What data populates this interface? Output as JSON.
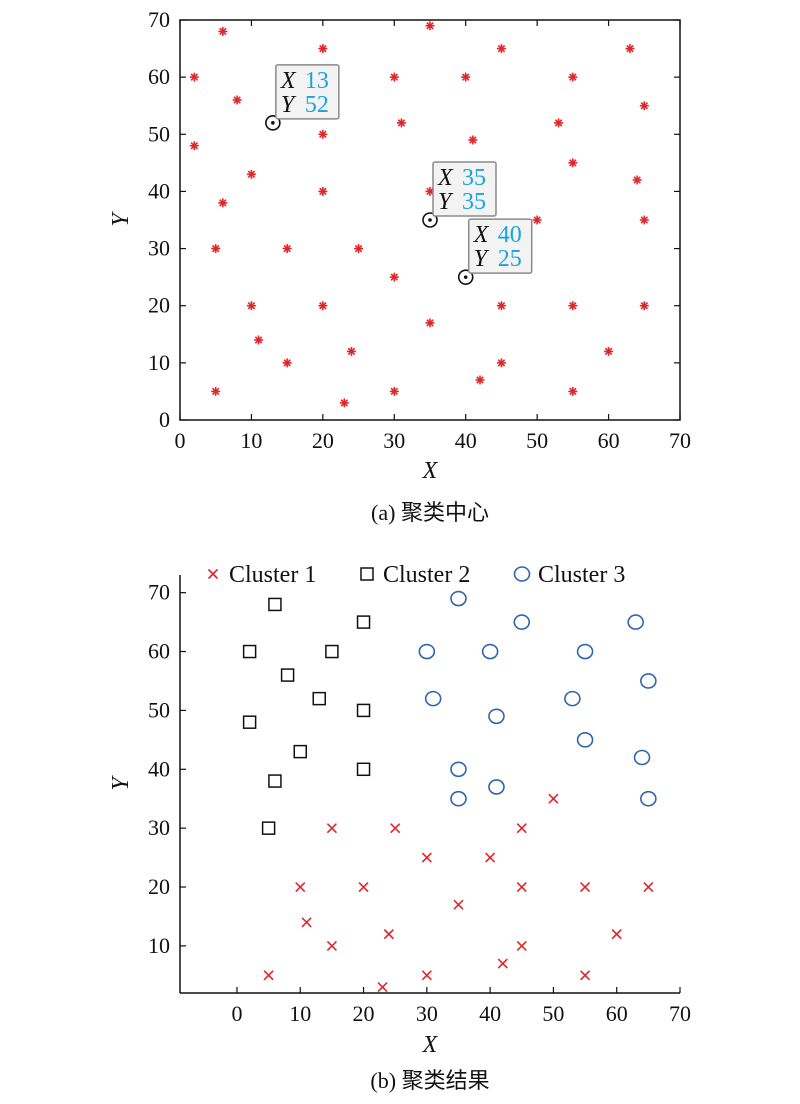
{
  "chart_data": [
    {
      "type": "scatter",
      "caption": "(a) 聚类中心",
      "xlabel": "X",
      "ylabel": "Y",
      "xlim": [
        0,
        70
      ],
      "ylim": [
        0,
        70
      ],
      "xticks": [
        0,
        10,
        20,
        30,
        40,
        50,
        60,
        70
      ],
      "yticks": [
        0,
        10,
        20,
        30,
        40,
        50,
        60,
        70
      ],
      "marker_color": "#e0262b",
      "points": [
        [
          2,
          60
        ],
        [
          6,
          68
        ],
        [
          8,
          56
        ],
        [
          2,
          48
        ],
        [
          10,
          43
        ],
        [
          6,
          38
        ],
        [
          5,
          30
        ],
        [
          15,
          30
        ],
        [
          10,
          20
        ],
        [
          11,
          14
        ],
        [
          15,
          10
        ],
        [
          5,
          5
        ],
        [
          20,
          65
        ],
        [
          20,
          50
        ],
        [
          20,
          40
        ],
        [
          25,
          30
        ],
        [
          20,
          20
        ],
        [
          24,
          12
        ],
        [
          23,
          3
        ],
        [
          30,
          60
        ],
        [
          31,
          52
        ],
        [
          30,
          25
        ],
        [
          30,
          5
        ],
        [
          35,
          69
        ],
        [
          35,
          40
        ],
        [
          35,
          17
        ],
        [
          40,
          60
        ],
        [
          41,
          49
        ],
        [
          42,
          7
        ],
        [
          45,
          65
        ],
        [
          45,
          20
        ],
        [
          45,
          10
        ],
        [
          50,
          35
        ],
        [
          53,
          52
        ],
        [
          55,
          60
        ],
        [
          55,
          45
        ],
        [
          55,
          20
        ],
        [
          55,
          5
        ],
        [
          60,
          12
        ],
        [
          63,
          65
        ],
        [
          65,
          55
        ],
        [
          64,
          42
        ],
        [
          65,
          35
        ],
        [
          65,
          20
        ]
      ],
      "centers": [
        {
          "x": 13,
          "y": 52,
          "x_key": "X",
          "x_text": "13",
          "y_key": "Y",
          "y_text": "52"
        },
        {
          "x": 35,
          "y": 35,
          "x_key": "X",
          "x_text": "35",
          "y_key": "Y",
          "y_text": "35"
        },
        {
          "x": 40,
          "y": 25,
          "x_key": "X",
          "x_text": "40",
          "y_key": "Y",
          "y_text": "25"
        }
      ]
    },
    {
      "type": "scatter",
      "caption": "(b) 聚类结果",
      "xlabel": "X",
      "ylabel": "Y",
      "xlim": [
        -9,
        70
      ],
      "ylim": [
        2,
        73
      ],
      "xticks": [
        0,
        10,
        20,
        30,
        40,
        50,
        60,
        70
      ],
      "yticks": [
        10,
        20,
        30,
        40,
        50,
        60,
        70
      ],
      "legend_position": "top",
      "series": [
        {
          "name": "Cluster 1",
          "marker": "x",
          "color": "#e0262b",
          "points": [
            [
              15,
              30
            ],
            [
              25,
              30
            ],
            [
              30,
              25
            ],
            [
              40,
              25
            ],
            [
              45,
              30
            ],
            [
              50,
              35
            ],
            [
              10,
              20
            ],
            [
              20,
              20
            ],
            [
              45,
              20
            ],
            [
              55,
              20
            ],
            [
              65,
              20
            ],
            [
              35,
              17
            ],
            [
              11,
              14
            ],
            [
              24,
              12
            ],
            [
              15,
              10
            ],
            [
              45,
              10
            ],
            [
              60,
              12
            ],
            [
              5,
              5
            ],
            [
              30,
              5
            ],
            [
              42,
              7
            ],
            [
              55,
              5
            ],
            [
              23,
              3
            ]
          ]
        },
        {
          "name": "Cluster 2",
          "marker": "square",
          "color": "#111111",
          "points": [
            [
              6,
              68
            ],
            [
              20,
              65
            ],
            [
              2,
              60
            ],
            [
              15,
              60
            ],
            [
              8,
              56
            ],
            [
              13,
              52
            ],
            [
              2,
              48
            ],
            [
              20,
              50
            ],
            [
              10,
              43
            ],
            [
              6,
              38
            ],
            [
              20,
              40
            ],
            [
              5,
              30
            ]
          ]
        },
        {
          "name": "Cluster 3",
          "marker": "circle",
          "color": "#2e65ad",
          "points": [
            [
              35,
              69
            ],
            [
              45,
              65
            ],
            [
              63,
              65
            ],
            [
              30,
              60
            ],
            [
              40,
              60
            ],
            [
              55,
              60
            ],
            [
              65,
              55
            ],
            [
              31,
              52
            ],
            [
              53,
              52
            ],
            [
              41,
              49
            ],
            [
              55,
              45
            ],
            [
              64,
              42
            ],
            [
              35,
              40
            ],
            [
              41,
              37
            ],
            [
              35,
              35
            ],
            [
              65,
              35
            ]
          ]
        }
      ]
    }
  ]
}
